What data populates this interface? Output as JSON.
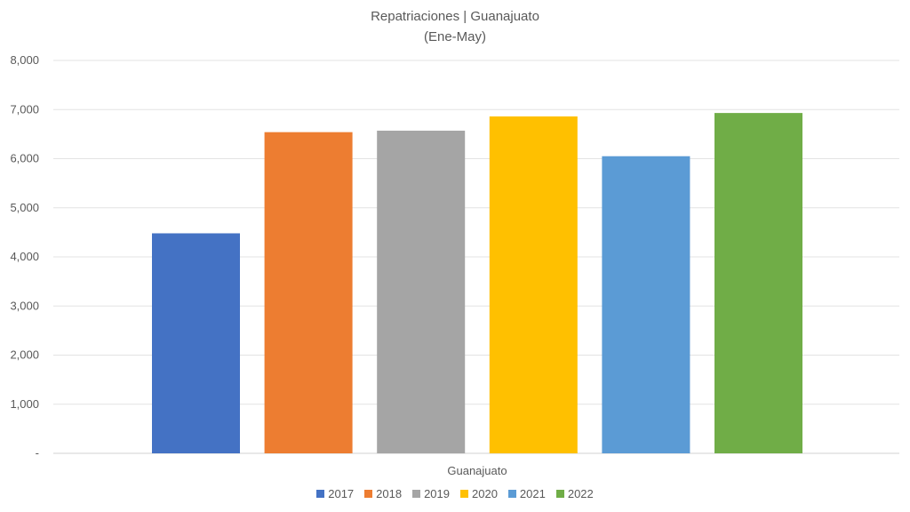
{
  "chart_data": {
    "type": "bar",
    "title": "Repatriaciones | Guanajuato",
    "subtitle": "(Ene-May)",
    "categories": [
      "Guanajuato"
    ],
    "series": [
      {
        "name": "2017",
        "values": [
          4480
        ],
        "color": "#4472C4"
      },
      {
        "name": "2018",
        "values": [
          6540
        ],
        "color": "#ED7D31"
      },
      {
        "name": "2019",
        "values": [
          6570
        ],
        "color": "#A5A5A5"
      },
      {
        "name": "2020",
        "values": [
          6860
        ],
        "color": "#FFC000"
      },
      {
        "name": "2021",
        "values": [
          6050
        ],
        "color": "#5B9BD5"
      },
      {
        "name": "2022",
        "values": [
          6930
        ],
        "color": "#70AD47"
      }
    ],
    "xlabel": "",
    "ylabel": "",
    "ylim": [
      0,
      8000
    ],
    "yticks": [
      0,
      1000,
      2000,
      3000,
      4000,
      5000,
      6000,
      7000,
      8000
    ],
    "ytick_labels": [
      "-",
      "1,000",
      "2,000",
      "3,000",
      "4,000",
      "5,000",
      "6,000",
      "7,000",
      "8,000"
    ],
    "grid": true,
    "legend_position": "bottom"
  }
}
